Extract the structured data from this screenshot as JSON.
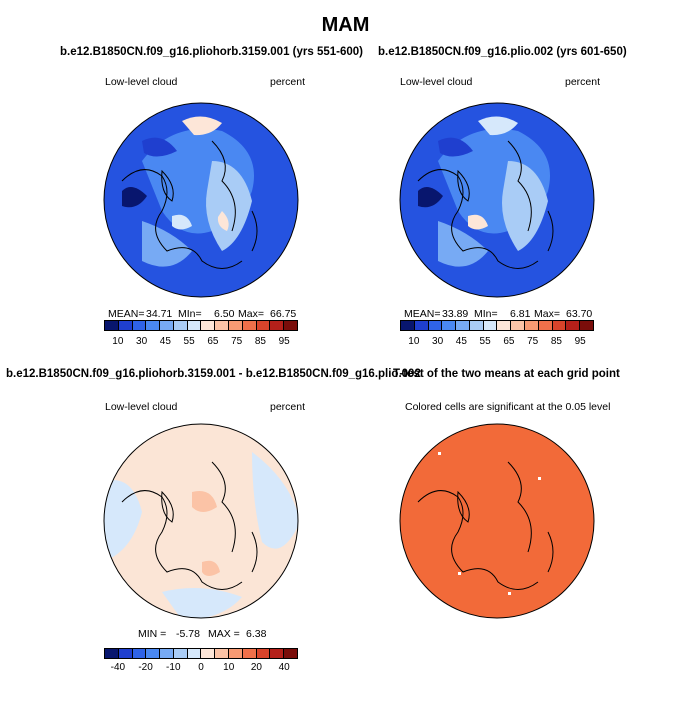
{
  "figure": {
    "title": "MAM"
  },
  "panels": [
    {
      "title": "b.e12.B1850CN.f09_g16.pliohorb.3159.001 (yrs 551-600)",
      "left_label": "Low-level cloud",
      "right_label": "percent",
      "stats": {
        "mean_label": "MEAN=",
        "mean": "34.71",
        "min_label": "MIn=",
        "min": "6.50",
        "max_label": "Max=",
        "max": "66.75"
      },
      "colorbar_ticks": [
        "10",
        "30",
        "45",
        "55",
        "65",
        "75",
        "85",
        "95"
      ]
    },
    {
      "title": "b.e12.B1850CN.f09_g16.plio.002 (yrs 601-650)",
      "left_label": "Low-level cloud",
      "right_label": "percent",
      "stats": {
        "mean_label": "MEAN=",
        "mean": "33.89",
        "min_label": "MIn=",
        "min": "6.81",
        "max_label": "Max=",
        "max": "63.70"
      },
      "colorbar_ticks": [
        "10",
        "30",
        "45",
        "55",
        "65",
        "75",
        "85",
        "95"
      ]
    },
    {
      "title": "b.e12.B1850CN.f09_g16.pliohorb.3159.001 - b.e12.B1850CN.f09_g16.plio.002",
      "left_label": "Low-level cloud",
      "right_label": "percent",
      "stats": {
        "min_label": "MIN =",
        "min": "-5.78",
        "max_label": "MAX =",
        "max": "6.38"
      },
      "colorbar_ticks": [
        "-40",
        "-20",
        "-10",
        "0",
        "10",
        "20",
        "40"
      ]
    },
    {
      "title": "T-test of the two means at each grid point",
      "left_label": "Colored cells are significant at the 0.05 level"
    }
  ],
  "colors": {
    "full_palette": [
      "#08166e",
      "#1f3fcf",
      "#2f63e8",
      "#4a88f2",
      "#77aaf4",
      "#a9ccf6",
      "#d6e8fb",
      "#fde6d8",
      "#fbc3a6",
      "#f79a73",
      "#f0704a",
      "#d9442b",
      "#b4201a",
      "#7a0d0a"
    ],
    "diff_palette": [
      "#08166e",
      "#1f3fcf",
      "#2f63e8",
      "#4a88f2",
      "#77aaf4",
      "#a9ccf6",
      "#d6e8fb",
      "#fde6d8",
      "#fbc3a6",
      "#f79a73",
      "#f0704a",
      "#d9442b",
      "#b4201a",
      "#7a0d0a"
    ],
    "ocean_blue": "#2553e0",
    "ttest_fill": "#f26a39",
    "diff_background": "#fbe5d6"
  }
}
